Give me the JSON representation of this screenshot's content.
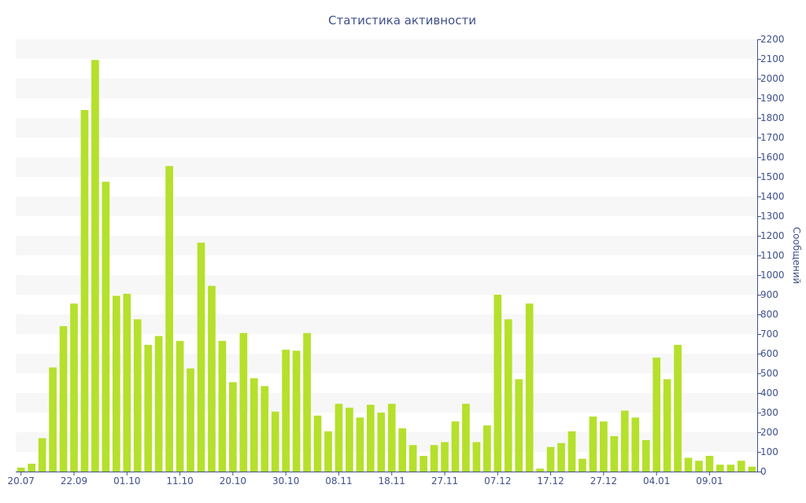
{
  "chart_data": {
    "type": "bar",
    "title": "Статистика активности",
    "ylabel": "Сообщений",
    "ylim": [
      0,
      2200
    ],
    "y_ticks": [
      0,
      100,
      200,
      300,
      400,
      500,
      600,
      700,
      800,
      900,
      1000,
      1100,
      1200,
      1300,
      1400,
      1500,
      1600,
      1700,
      1800,
      1900,
      2000,
      2100,
      2200
    ],
    "y_axis_position": "right",
    "grid": "alternating horizontal bands",
    "x_tick_labels": [
      "20.07",
      "22.09",
      "01.10",
      "11.10",
      "20.10",
      "30.10",
      "08.11",
      "18.11",
      "27.11",
      "07.12",
      "17.12",
      "27.12",
      "04.01",
      "09.01"
    ],
    "x_tick_bar_index": [
      0,
      5,
      10,
      15,
      20,
      25,
      30,
      35,
      40,
      45,
      50,
      55,
      60,
      65
    ],
    "bar_color": "#b5e02c",
    "axis_color": "#3e4f8a",
    "values": [
      20,
      40,
      170,
      530,
      740,
      855,
      1840,
      2095,
      1475,
      895,
      905,
      775,
      645,
      690,
      1555,
      665,
      525,
      1165,
      945,
      665,
      455,
      705,
      475,
      435,
      305,
      620,
      615,
      705,
      285,
      205,
      345,
      325,
      275,
      340,
      300,
      345,
      220,
      135,
      80,
      135,
      150,
      255,
      345,
      150,
      235,
      900,
      775,
      470,
      855,
      15,
      125,
      145,
      205,
      65,
      280,
      255,
      180,
      310,
      275,
      160,
      580,
      470,
      645,
      70,
      55,
      80,
      35,
      35,
      55,
      25
    ]
  }
}
